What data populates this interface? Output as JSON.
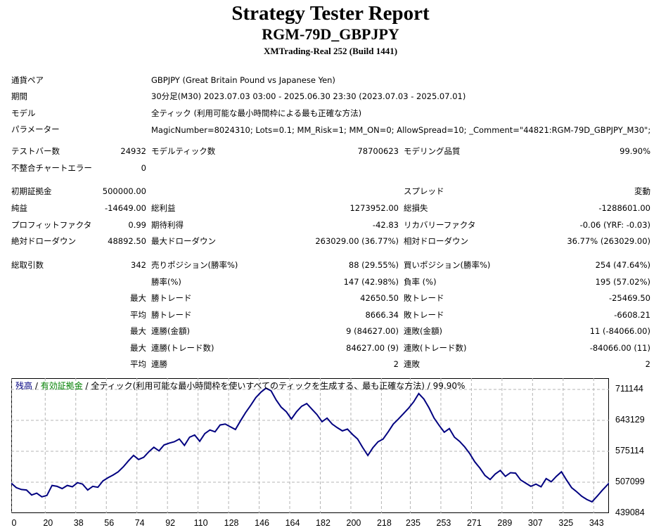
{
  "header": {
    "title": "Strategy Tester Report",
    "subtitle": "RGM-79D_GBPJPY",
    "server": "XMTrading-Real 252 (Build 1441)"
  },
  "settings": {
    "symbol_label": "通貨ペア",
    "symbol_value": "GBPJPY (Great Britain Pound vs Japanese Yen)",
    "period_label": "期間",
    "period_value": "30分足(M30) 2023.07.03 03:00 - 2025.06.30 23:30 (2023.07.03 - 2025.07.01)",
    "model_label": "モデル",
    "model_value": "全ティック (利用可能な最小時間枠による最も正確な方法)",
    "params_label": "パラメーター",
    "params_value": "MagicNumber=8024310; Lots=0.1; MM_Risk=1; MM_ON=0; AllowSpread=10; _Comment=\"44821:RGM-79D_GBPJPY_M30\";"
  },
  "stats": {
    "bars_label": "テストバー数",
    "bars_value": "24932",
    "ticks_label": "モデルティック数",
    "ticks_value": "78700623",
    "quality_label": "モデリング品質",
    "quality_value": "99.90%",
    "mismatch_label": "不整合チャートエラー",
    "mismatch_value": "0",
    "deposit_label": "初期証拠金",
    "deposit_value": "500000.00",
    "spread_label": "スプレッド",
    "spread_value": "変動",
    "net_label": "純益",
    "net_value": "-14649.00",
    "gross_profit_label": "総利益",
    "gross_profit_value": "1273952.00",
    "gross_loss_label": "総損失",
    "gross_loss_value": "-1288601.00",
    "pf_label": "プロフィットファクタ",
    "pf_value": "0.99",
    "expected_label": "期待利得",
    "expected_value": "-42.83",
    "recovery_label": "リカバリーファクタ",
    "recovery_value": "-0.06 (YRF: -0.03)",
    "abs_dd_label": "絶対ドローダウン",
    "abs_dd_value": "48892.50",
    "max_dd_label": "最大ドローダウン",
    "max_dd_value": "263029.00 (36.77%)",
    "rel_dd_label": "相対ドローダウン",
    "rel_dd_value": "36.77% (263029.00)",
    "trades_label": "総取引数",
    "trades_value": "342",
    "short_label": "売りポジション(勝率%)",
    "short_value": "88 (29.55%)",
    "long_label": "買いポジション(勝率%)",
    "long_value": "254 (47.64%)",
    "win_pct_label": "勝率(%)",
    "win_pct_value": "147 (42.98%)",
    "loss_pct_label": "負率 (%)",
    "loss_pct_value": "195 (57.02%)",
    "max_label": "最大",
    "avg_label": "平均",
    "largest_win_label": "勝トレード",
    "largest_win_value": "42650.50",
    "largest_loss_label": "敗トレード",
    "largest_loss_value": "-25469.50",
    "avg_win_label": "勝トレード",
    "avg_win_value": "8666.34",
    "avg_loss_label": "敗トレード",
    "avg_loss_value": "-6608.21",
    "max_consec_wins_label": "連勝(金額)",
    "max_consec_wins_value": "9 (84627.00)",
    "max_consec_losses_label": "連敗(金額)",
    "max_consec_losses_value": "11 (-84066.00)",
    "max_consec_profit_label": "連勝(トレード数)",
    "max_consec_profit_value": "84627.00 (9)",
    "max_consec_loss_label": "連敗(トレード数)",
    "max_consec_loss_value": "-84066.00 (11)",
    "avg_consec_wins_label": "連勝",
    "avg_consec_wins_value": "2",
    "avg_consec_losses_label": "連敗",
    "avg_consec_losses_value": "2"
  },
  "legend": {
    "balance": "残高",
    "sep1": " / ",
    "equity": "有効証拠金",
    "sep2": " / ",
    "desc": "全ティック(利用可能な最小時間枠を使いすべてのティックを生成する、最も正確な方法) / 99.90%",
    "balance_color": "#000080",
    "equity_color": "#008000"
  },
  "chart_data": {
    "type": "line",
    "x_ticks": [
      "0",
      "20",
      "38",
      "56",
      "74",
      "92",
      "110",
      "128",
      "146",
      "164",
      "182",
      "200",
      "218",
      "235",
      "253",
      "271",
      "289",
      "307",
      "325",
      "343"
    ],
    "y_ticks": [
      "711144",
      "643129",
      "575114",
      "507099",
      "439084"
    ],
    "ylim": [
      439084,
      711144
    ],
    "xlim": [
      0,
      352
    ],
    "series": [
      {
        "name": "残高",
        "color": "#000080",
        "x": [
          0,
          3,
          6,
          9,
          12,
          15,
          18,
          21,
          24,
          27,
          30,
          33,
          36,
          39,
          42,
          45,
          48,
          51,
          54,
          57,
          60,
          63,
          66,
          69,
          72,
          75,
          78,
          81,
          84,
          87,
          90,
          93,
          96,
          99,
          102,
          105,
          108,
          111,
          114,
          117,
          120,
          123,
          126,
          129,
          132,
          135,
          138,
          141,
          144,
          147,
          150,
          153,
          156,
          159,
          162,
          165,
          168,
          171,
          174,
          177,
          180,
          183,
          186,
          189,
          192,
          195,
          198,
          201,
          204,
          207,
          210,
          213,
          216,
          219,
          222,
          225,
          228,
          231,
          234,
          237,
          240,
          243,
          246,
          249,
          252,
          255,
          258,
          261,
          264,
          267,
          270,
          273,
          276,
          279,
          282,
          285,
          288,
          291,
          294,
          297,
          300,
          303,
          306,
          309,
          312,
          315,
          318,
          321,
          324,
          327,
          330,
          333,
          336,
          339,
          342,
          345,
          348,
          352
        ],
        "values": [
          505000,
          495000,
          491000,
          490000,
          479000,
          483000,
          475000,
          478000,
          500000,
          498000,
          493000,
          500000,
          497000,
          506000,
          503000,
          490000,
          498000,
          496000,
          510000,
          517000,
          523000,
          530000,
          541000,
          554000,
          566000,
          557000,
          562000,
          574000,
          584000,
          576000,
          589000,
          593000,
          596000,
          602000,
          588000,
          606000,
          611000,
          597000,
          614000,
          622000,
          618000,
          633000,
          635000,
          629000,
          623000,
          642000,
          660000,
          676000,
          693000,
          705000,
          714000,
          708000,
          688000,
          672000,
          662000,
          646000,
          662000,
          674000,
          680000,
          668000,
          656000,
          640000,
          648000,
          635000,
          627000,
          620000,
          624000,
          612000,
          602000,
          583000,
          566000,
          583000,
          596000,
          602000,
          618000,
          635000,
          646000,
          658000,
          670000,
          684000,
          702000,
          690000,
          671000,
          648000,
          632000,
          617000,
          625000,
          606000,
          597000,
          585000,
          570000,
          552000,
          538000,
          522000,
          513000,
          525000,
          533000,
          520000,
          528000,
          527000,
          512000,
          505000,
          498000,
          503000,
          497000,
          515000,
          508000,
          520000,
          530000,
          512000,
          495000,
          486000,
          476000,
          469000,
          464000,
          476000,
          489000,
          505000
        ]
      }
    ]
  }
}
